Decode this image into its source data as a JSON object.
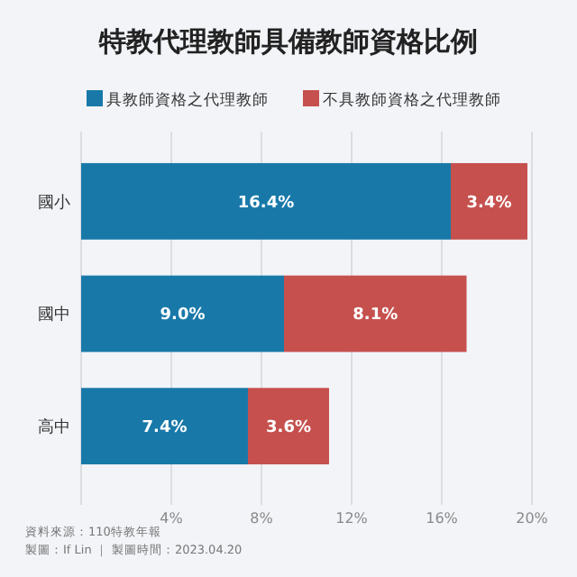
{
  "chart_data": {
    "type": "bar",
    "orientation": "horizontal",
    "stacked": true,
    "title": "特教代理教師具備教師資格比例",
    "categories": [
      "國小",
      "國中",
      "高中"
    ],
    "series": [
      {
        "name": "具教師資格之代理教師",
        "color": "#1879a9",
        "values": [
          16.4,
          9.0,
          7.4
        ],
        "value_labels": [
          "16.4%",
          "9.0%",
          "7.4%"
        ]
      },
      {
        "name": "不具教師資格之代理教師",
        "color": "#c5504d",
        "values": [
          3.4,
          8.1,
          3.6
        ],
        "value_labels": [
          "3.4%",
          "8.1%",
          "3.6%"
        ]
      }
    ],
    "xlim": [
      0,
      20
    ],
    "xticks": [
      {
        "value": 0,
        "label": null
      },
      {
        "value": 4,
        "label": "4%"
      },
      {
        "value": 8,
        "label": "8%"
      },
      {
        "value": 12,
        "label": "12%"
      },
      {
        "value": 16,
        "label": "16%"
      },
      {
        "value": 20,
        "label": "20%"
      }
    ],
    "grid": "x",
    "legend": "top",
    "annotations": [
      "資料來源：110特教年報",
      "製圖：If Lin ｜ 製圖時間：2023.04.20"
    ]
  }
}
